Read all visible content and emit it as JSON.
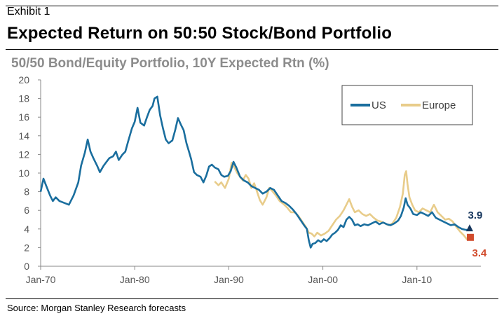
{
  "header": {
    "exhibit": "Exhibit 1",
    "title": "Expected Return on 50:50 Stock/Bond Portfolio"
  },
  "source": "Source: Morgan Stanley Research forecasts",
  "chart_data": {
    "type": "line",
    "title": "50/50 Bond/Equity Portfolio, 10Y Expected Rtn (%)",
    "xlabel": "",
    "ylabel": "",
    "xlim": [
      1970,
      2015.9
    ],
    "ylim": [
      0,
      20
    ],
    "yticks": [
      0,
      2,
      4,
      6,
      8,
      10,
      12,
      14,
      16,
      18,
      20
    ],
    "xticks": [
      {
        "label": "Jan-70",
        "x": 1970
      },
      {
        "label": "Jan-80",
        "x": 1980
      },
      {
        "label": "Jan-90",
        "x": 1990
      },
      {
        "label": "Jan-00",
        "x": 2000
      },
      {
        "label": "Jan-10",
        "x": 2010
      }
    ],
    "legend_position": "top-right",
    "grid": false,
    "series": [
      {
        "name": "US",
        "color": "#1a6e9e",
        "points": [
          [
            1970.0,
            8.0
          ],
          [
            1970.3,
            9.4
          ],
          [
            1970.6,
            8.6
          ],
          [
            1971.0,
            7.6
          ],
          [
            1971.3,
            7.0
          ],
          [
            1971.6,
            7.4
          ],
          [
            1972.0,
            7.0
          ],
          [
            1972.5,
            6.8
          ],
          [
            1973.0,
            6.6
          ],
          [
            1973.5,
            7.6
          ],
          [
            1974.0,
            9.0
          ],
          [
            1974.3,
            10.8
          ],
          [
            1974.7,
            12.2
          ],
          [
            1975.0,
            13.6
          ],
          [
            1975.3,
            12.3
          ],
          [
            1975.6,
            11.6
          ],
          [
            1976.0,
            10.8
          ],
          [
            1976.3,
            10.1
          ],
          [
            1976.7,
            10.8
          ],
          [
            1977.0,
            11.2
          ],
          [
            1977.3,
            11.6
          ],
          [
            1977.7,
            11.8
          ],
          [
            1978.0,
            12.3
          ],
          [
            1978.3,
            11.4
          ],
          [
            1978.7,
            12.0
          ],
          [
            1979.0,
            12.3
          ],
          [
            1979.3,
            13.4
          ],
          [
            1979.7,
            14.8
          ],
          [
            1980.0,
            15.5
          ],
          [
            1980.3,
            17.0
          ],
          [
            1980.6,
            15.4
          ],
          [
            1981.0,
            15.1
          ],
          [
            1981.3,
            16.0
          ],
          [
            1981.6,
            16.8
          ],
          [
            1981.9,
            17.2
          ],
          [
            1982.1,
            18.0
          ],
          [
            1982.4,
            18.2
          ],
          [
            1982.7,
            16.2
          ],
          [
            1983.0,
            14.8
          ],
          [
            1983.3,
            13.6
          ],
          [
            1983.6,
            13.2
          ],
          [
            1984.0,
            13.5
          ],
          [
            1984.3,
            14.6
          ],
          [
            1984.6,
            15.9
          ],
          [
            1984.9,
            15.2
          ],
          [
            1985.2,
            14.6
          ],
          [
            1985.5,
            13.2
          ],
          [
            1985.8,
            12.2
          ],
          [
            1986.0,
            11.5
          ],
          [
            1986.3,
            10.1
          ],
          [
            1986.6,
            9.8
          ],
          [
            1987.0,
            9.6
          ],
          [
            1987.3,
            9.0
          ],
          [
            1987.6,
            9.7
          ],
          [
            1987.9,
            10.7
          ],
          [
            1988.2,
            10.9
          ],
          [
            1988.5,
            10.6
          ],
          [
            1988.9,
            10.4
          ],
          [
            1989.2,
            9.8
          ],
          [
            1989.5,
            9.6
          ],
          [
            1989.9,
            9.7
          ],
          [
            1990.2,
            10.2
          ],
          [
            1990.5,
            11.2
          ],
          [
            1990.8,
            10.6
          ],
          [
            1991.2,
            9.6
          ],
          [
            1991.6,
            9.2
          ],
          [
            1992.0,
            9.0
          ],
          [
            1992.4,
            8.6
          ],
          [
            1992.8,
            8.4
          ],
          [
            1993.2,
            8.2
          ],
          [
            1993.6,
            7.8
          ],
          [
            1994.0,
            8.0
          ],
          [
            1994.4,
            8.4
          ],
          [
            1994.8,
            8.2
          ],
          [
            1995.2,
            7.6
          ],
          [
            1995.6,
            7.0
          ],
          [
            1996.0,
            6.8
          ],
          [
            1996.4,
            6.5
          ],
          [
            1996.8,
            6.1
          ],
          [
            1997.2,
            5.6
          ],
          [
            1997.6,
            5.0
          ],
          [
            1998.0,
            4.4
          ],
          [
            1998.3,
            4.0
          ],
          [
            1998.5,
            2.8
          ],
          [
            1998.7,
            2.0
          ],
          [
            1998.9,
            2.4
          ],
          [
            1999.2,
            2.5
          ],
          [
            1999.5,
            2.8
          ],
          [
            1999.8,
            2.6
          ],
          [
            2000.1,
            2.9
          ],
          [
            2000.4,
            2.7
          ],
          [
            2000.7,
            3.0
          ],
          [
            2001.0,
            3.4
          ],
          [
            2001.3,
            3.6
          ],
          [
            2001.6,
            3.9
          ],
          [
            2001.9,
            4.4
          ],
          [
            2002.2,
            4.2
          ],
          [
            2002.5,
            5.0
          ],
          [
            2002.8,
            5.3
          ],
          [
            2003.1,
            5.0
          ],
          [
            2003.4,
            4.4
          ],
          [
            2003.7,
            4.5
          ],
          [
            2004.0,
            4.3
          ],
          [
            2004.4,
            4.5
          ],
          [
            2004.8,
            4.4
          ],
          [
            2005.2,
            4.6
          ],
          [
            2005.6,
            4.8
          ],
          [
            2006.0,
            4.5
          ],
          [
            2006.4,
            4.7
          ],
          [
            2006.8,
            4.5
          ],
          [
            2007.2,
            4.4
          ],
          [
            2007.6,
            4.6
          ],
          [
            2008.0,
            4.9
          ],
          [
            2008.3,
            5.4
          ],
          [
            2008.6,
            6.3
          ],
          [
            2008.8,
            7.3
          ],
          [
            2009.0,
            6.6
          ],
          [
            2009.3,
            6.2
          ],
          [
            2009.6,
            5.6
          ],
          [
            2010.0,
            5.5
          ],
          [
            2010.4,
            5.8
          ],
          [
            2010.8,
            5.6
          ],
          [
            2011.2,
            5.4
          ],
          [
            2011.6,
            5.8
          ],
          [
            2012.0,
            5.2
          ],
          [
            2012.4,
            5.0
          ],
          [
            2012.8,
            4.8
          ],
          [
            2013.2,
            4.6
          ],
          [
            2013.6,
            4.4
          ],
          [
            2014.0,
            4.5
          ],
          [
            2014.4,
            4.2
          ],
          [
            2014.8,
            4.0
          ],
          [
            2015.2,
            3.9
          ],
          [
            2015.6,
            3.9
          ]
        ],
        "end_label": "3.9"
      },
      {
        "name": "Europe",
        "color": "#e8cc8a",
        "points": [
          [
            1988.5,
            9.1
          ],
          [
            1988.9,
            8.7
          ],
          [
            1989.2,
            9.0
          ],
          [
            1989.6,
            8.4
          ],
          [
            1990.0,
            9.4
          ],
          [
            1990.3,
            11.1
          ],
          [
            1990.6,
            10.6
          ],
          [
            1990.9,
            10.0
          ],
          [
            1991.2,
            9.6
          ],
          [
            1991.5,
            9.2
          ],
          [
            1991.8,
            9.8
          ],
          [
            1992.1,
            9.4
          ],
          [
            1992.4,
            8.4
          ],
          [
            1992.7,
            8.9
          ],
          [
            1993.0,
            8.0
          ],
          [
            1993.3,
            7.1
          ],
          [
            1993.6,
            6.6
          ],
          [
            1994.0,
            7.4
          ],
          [
            1994.3,
            8.4
          ],
          [
            1994.6,
            8.1
          ],
          [
            1995.0,
            7.6
          ],
          [
            1995.4,
            7.0
          ],
          [
            1995.8,
            6.7
          ],
          [
            1996.2,
            6.3
          ],
          [
            1996.6,
            5.8
          ],
          [
            1997.0,
            5.8
          ],
          [
            1997.4,
            5.4
          ],
          [
            1997.8,
            4.8
          ],
          [
            1998.2,
            4.2
          ],
          [
            1998.5,
            3.6
          ],
          [
            1998.8,
            3.5
          ],
          [
            1999.1,
            3.2
          ],
          [
            1999.4,
            3.6
          ],
          [
            1999.8,
            3.3
          ],
          [
            2000.2,
            3.5
          ],
          [
            2000.6,
            3.8
          ],
          [
            2001.0,
            4.4
          ],
          [
            2001.4,
            5.0
          ],
          [
            2001.8,
            5.4
          ],
          [
            2002.2,
            6.0
          ],
          [
            2002.5,
            6.6
          ],
          [
            2002.8,
            7.2
          ],
          [
            2003.1,
            6.4
          ],
          [
            2003.4,
            5.8
          ],
          [
            2003.8,
            6.0
          ],
          [
            2004.2,
            5.6
          ],
          [
            2004.6,
            5.4
          ],
          [
            2005.0,
            5.6
          ],
          [
            2005.4,
            5.2
          ],
          [
            2005.8,
            4.9
          ],
          [
            2006.2,
            4.8
          ],
          [
            2006.6,
            4.6
          ],
          [
            2007.0,
            4.4
          ],
          [
            2007.4,
            4.6
          ],
          [
            2007.8,
            5.2
          ],
          [
            2008.2,
            6.4
          ],
          [
            2008.5,
            7.8
          ],
          [
            2008.7,
            9.8
          ],
          [
            2008.85,
            10.2
          ],
          [
            2009.0,
            8.8
          ],
          [
            2009.2,
            7.4
          ],
          [
            2009.5,
            6.6
          ],
          [
            2009.8,
            6.0
          ],
          [
            2010.2,
            5.8
          ],
          [
            2010.6,
            6.2
          ],
          [
            2011.0,
            6.0
          ],
          [
            2011.4,
            5.8
          ],
          [
            2011.8,
            6.6
          ],
          [
            2012.2,
            5.8
          ],
          [
            2012.6,
            5.4
          ],
          [
            2013.0,
            5.0
          ],
          [
            2013.4,
            5.1
          ],
          [
            2013.8,
            4.8
          ],
          [
            2014.2,
            4.2
          ],
          [
            2014.6,
            3.7
          ],
          [
            2015.0,
            3.3
          ],
          [
            2015.3,
            2.9
          ],
          [
            2015.6,
            3.4
          ]
        ],
        "end_label": "3.4"
      }
    ],
    "end_markers": [
      {
        "series": "US",
        "x": 2015.6,
        "y": 3.9,
        "label": "3.9",
        "label_color": "#17375e",
        "marker_color": "#17375e"
      },
      {
        "series": "Europe",
        "x": 2015.6,
        "y": 3.4,
        "label": "3.4",
        "label_color": "#d14b2c",
        "marker_color": "#d14b2c"
      }
    ]
  }
}
